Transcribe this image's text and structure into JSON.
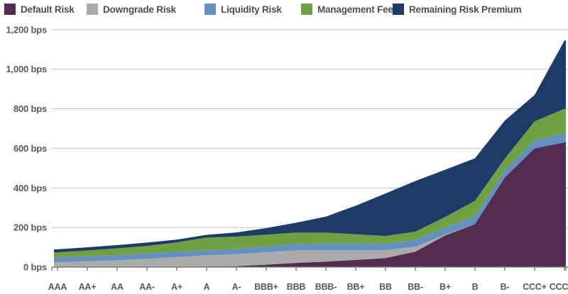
{
  "chart_data": {
    "type": "area",
    "stacked": true,
    "title": "",
    "xlabel": "",
    "ylabel": "",
    "unit": "bps",
    "ylim": [
      0,
      1200
    ],
    "y_tick_step": 200,
    "y_ticks": [
      "0 bps",
      "200 bps",
      "400 bps",
      "600 bps",
      "800 bps",
      "1,000 bps",
      "1,200 bps"
    ],
    "grid": "horizontal",
    "legend_position": "top",
    "categories": [
      "AAA",
      "AA+",
      "AA",
      "AA-",
      "A+",
      "A",
      "A-",
      "BBB+",
      "BBB",
      "BBB-",
      "BB+",
      "BB",
      "BB-",
      "B+",
      "B",
      "B-",
      "CCC+",
      "CCC"
    ],
    "series": [
      {
        "name": "Default Risk",
        "color": "#532B51",
        "values": [
          1,
          1,
          2,
          2,
          3,
          3,
          5,
          12,
          21,
          28,
          36,
          46,
          78,
          160,
          217,
          453,
          600,
          630
        ]
      },
      {
        "name": "Downgrade Risk",
        "color": "#ABABAB",
        "values": [
          24,
          28,
          33,
          40,
          48,
          57,
          60,
          63,
          64,
          58,
          50,
          40,
          25,
          5,
          0,
          0,
          0,
          0
        ]
      },
      {
        "name": "Liquidity Risk",
        "color": "#6190C1",
        "values": [
          24,
          25,
          26,
          27,
          26,
          25,
          27,
          29,
          32,
          33,
          33,
          32,
          34,
          36,
          39,
          36,
          42,
          45
        ]
      },
      {
        "name": "Management Fee",
        "color": "#70A041",
        "values": [
          26,
          30,
          34,
          38,
          48,
          64,
          62,
          60,
          57,
          55,
          47,
          39,
          42,
          52,
          79,
          59,
          95,
          125
        ]
      },
      {
        "name": "Remaining Risk Premium",
        "color": "#1E3A67",
        "values": [
          15,
          16,
          16,
          17,
          14,
          14,
          21,
          33,
          50,
          81,
          144,
          215,
          256,
          239,
          215,
          192,
          133,
          345
        ]
      }
    ],
    "stacked_totals": [
      90,
      100,
      111,
      124,
      139,
      163,
      175,
      197,
      224,
      255,
      310,
      372,
      435,
      492,
      550,
      740,
      870,
      1145
    ]
  },
  "colors": {
    "axis_text": "#595959",
    "legend_text": "#4d4d4d",
    "gridline": "#C3C3C3",
    "axis_line": "#7F7F7F",
    "background": "#FFFFFF"
  }
}
